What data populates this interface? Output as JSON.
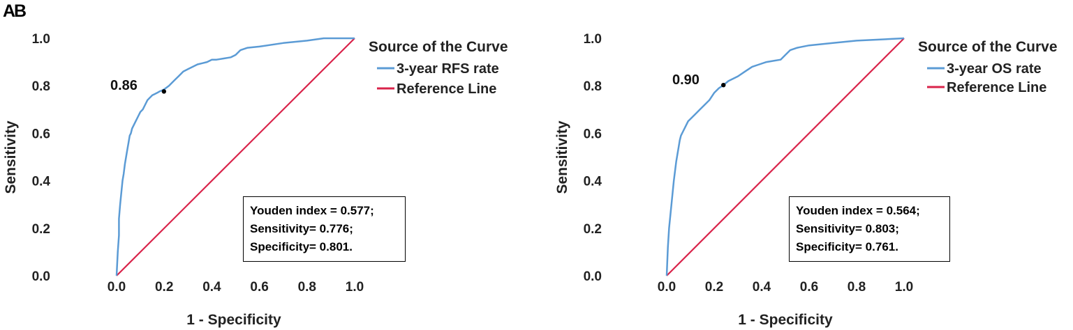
{
  "chart_data": [
    {
      "panel": "A",
      "type": "line",
      "xlabel": "1 - Specificity",
      "ylabel": "Sensitivity",
      "xlim": [
        0,
        1
      ],
      "ylim": [
        0,
        1
      ],
      "xticks": [
        "0.0",
        "0.2",
        "0.4",
        "0.6",
        "0.8",
        "1.0"
      ],
      "yticks": [
        "0.0",
        "0.2",
        "0.4",
        "0.6",
        "0.8",
        "1.0"
      ],
      "legend": {
        "title": "Source of the Curve",
        "position": "top-right",
        "entries": [
          {
            "label": "3-year RFS rate",
            "color": "#5b9bd5"
          },
          {
            "label": "Reference Line",
            "color": "#d9234a"
          }
        ]
      },
      "series": [
        {
          "name": "3-year RFS rate",
          "color": "#5b9bd5",
          "x": [
            0.0,
            0.005,
            0.01,
            0.01,
            0.015,
            0.02,
            0.025,
            0.03,
            0.035,
            0.04,
            0.045,
            0.05,
            0.055,
            0.06,
            0.065,
            0.07,
            0.08,
            0.09,
            0.1,
            0.11,
            0.12,
            0.13,
            0.14,
            0.15,
            0.16,
            0.17,
            0.18,
            0.19,
            0.2,
            0.22,
            0.24,
            0.26,
            0.28,
            0.3,
            0.32,
            0.34,
            0.36,
            0.38,
            0.4,
            0.42,
            0.45,
            0.48,
            0.5,
            0.52,
            0.55,
            0.6,
            0.7,
            0.8,
            0.87,
            1.0
          ],
          "y": [
            0.0,
            0.1,
            0.17,
            0.24,
            0.3,
            0.35,
            0.4,
            0.43,
            0.47,
            0.5,
            0.53,
            0.56,
            0.59,
            0.6,
            0.62,
            0.63,
            0.65,
            0.67,
            0.69,
            0.7,
            0.72,
            0.74,
            0.75,
            0.76,
            0.765,
            0.77,
            0.776,
            0.78,
            0.785,
            0.8,
            0.82,
            0.84,
            0.86,
            0.87,
            0.88,
            0.89,
            0.895,
            0.9,
            0.91,
            0.91,
            0.915,
            0.92,
            0.93,
            0.95,
            0.96,
            0.965,
            0.98,
            0.99,
            1.0,
            1.0
          ]
        },
        {
          "name": "Reference Line",
          "color": "#d9234a",
          "x": [
            0,
            1
          ],
          "y": [
            0,
            1
          ]
        }
      ],
      "cutoff": {
        "x": 0.199,
        "y": 0.776,
        "label": "0.86"
      },
      "stats": [
        "Youden index = 0.577;",
        "Sensitivity= 0.776;",
        "Specificity= 0.801."
      ]
    },
    {
      "panel": "B",
      "type": "line",
      "xlabel": "1 - Specificity",
      "ylabel": "Sensitivity",
      "xlim": [
        0,
        1
      ],
      "ylim": [
        0,
        1
      ],
      "xticks": [
        "0.0",
        "0.2",
        "0.4",
        "0.6",
        "0.8",
        "1.0"
      ],
      "yticks": [
        "0.0",
        "0.2",
        "0.4",
        "0.6",
        "0.8",
        "1.0"
      ],
      "legend": {
        "title": "Source of the Curve",
        "position": "top-right",
        "entries": [
          {
            "label": "3-year OS rate",
            "color": "#5b9bd5"
          },
          {
            "label": "Reference Line",
            "color": "#d9234a"
          }
        ]
      },
      "series": [
        {
          "name": "3-year OS rate",
          "color": "#5b9bd5",
          "x": [
            0.0,
            0.005,
            0.01,
            0.015,
            0.02,
            0.025,
            0.03,
            0.035,
            0.04,
            0.045,
            0.05,
            0.055,
            0.06,
            0.07,
            0.08,
            0.09,
            0.1,
            0.12,
            0.14,
            0.16,
            0.18,
            0.2,
            0.22,
            0.239,
            0.26,
            0.28,
            0.3,
            0.33,
            0.36,
            0.39,
            0.42,
            0.45,
            0.48,
            0.5,
            0.52,
            0.55,
            0.6,
            0.65,
            0.7,
            0.8,
            0.9,
            1.0
          ],
          "y": [
            0.0,
            0.12,
            0.2,
            0.25,
            0.3,
            0.35,
            0.4,
            0.44,
            0.48,
            0.51,
            0.54,
            0.57,
            0.59,
            0.61,
            0.63,
            0.65,
            0.66,
            0.68,
            0.7,
            0.72,
            0.74,
            0.77,
            0.79,
            0.803,
            0.82,
            0.83,
            0.84,
            0.86,
            0.88,
            0.89,
            0.9,
            0.905,
            0.91,
            0.93,
            0.95,
            0.96,
            0.97,
            0.975,
            0.98,
            0.99,
            0.995,
            1.0
          ]
        },
        {
          "name": "Reference Line",
          "color": "#d9234a",
          "x": [
            0,
            1
          ],
          "y": [
            0,
            1
          ]
        }
      ],
      "cutoff": {
        "x": 0.239,
        "y": 0.803,
        "label": "0.90"
      },
      "stats": [
        "Youden index = 0.564;",
        "Sensitivity= 0.803;",
        "Specificity= 0.761."
      ]
    }
  ]
}
